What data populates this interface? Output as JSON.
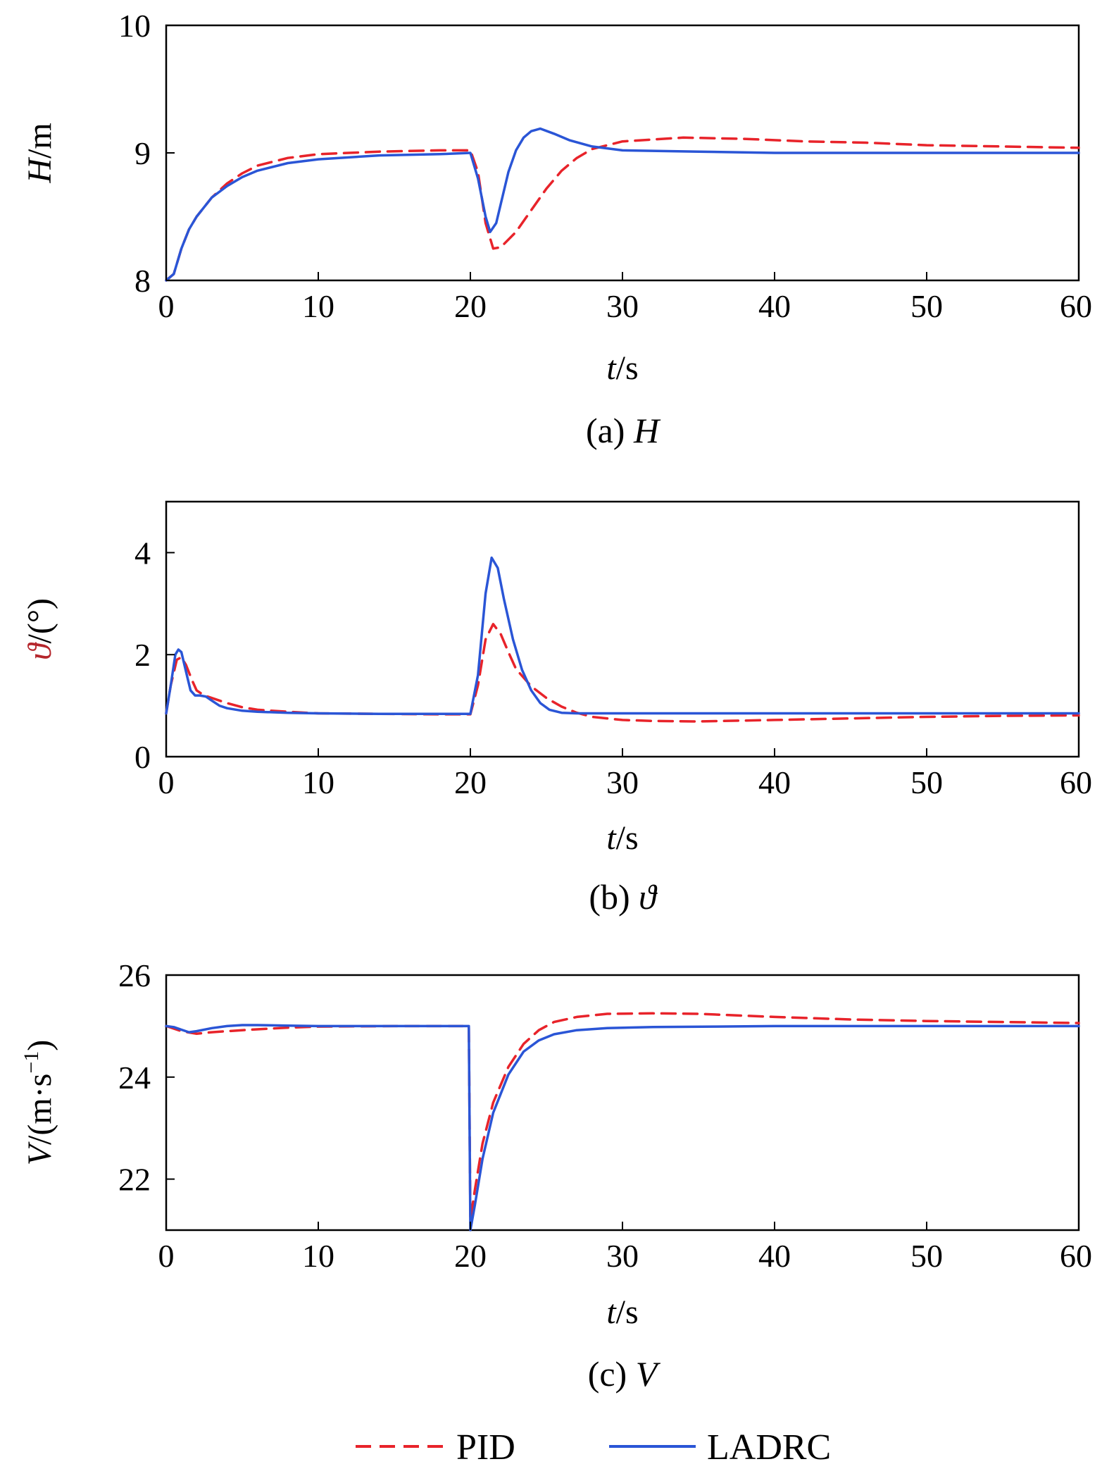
{
  "chart_data": [
    {
      "type": "line",
      "id": "a",
      "caption_prefix": "(a)",
      "caption_symbol": "H",
      "ylabel_var": "H",
      "ylabel_unit": "/m",
      "xlabel_var": "t",
      "xlabel_unit": "/s",
      "xlim": [
        0,
        60
      ],
      "ylim": [
        8,
        10
      ],
      "xticks": [
        0,
        10,
        20,
        30,
        40,
        50,
        60
      ],
      "yticks": [
        8,
        9,
        10
      ],
      "series": [
        {
          "name": "PID",
          "color": "#e8232a",
          "dash": true,
          "x": [
            0,
            0.5,
            1,
            1.5,
            2,
            3,
            4,
            5,
            6,
            8,
            10,
            14,
            18,
            20,
            20.5,
            21,
            21.5,
            22,
            23,
            24,
            25,
            26,
            27,
            28,
            30,
            34,
            38,
            42,
            46,
            50,
            55,
            60
          ],
          "y": [
            8,
            8.05,
            8.25,
            8.4,
            8.5,
            8.65,
            8.76,
            8.84,
            8.9,
            8.96,
            8.99,
            9.01,
            9.02,
            9.02,
            8.85,
            8.45,
            8.25,
            8.26,
            8.38,
            8.55,
            8.72,
            8.86,
            8.96,
            9.03,
            9.09,
            9.12,
            9.11,
            9.09,
            9.08,
            9.06,
            9.05,
            9.04
          ]
        },
        {
          "name": "LADRC",
          "color": "#2a55d6",
          "dash": false,
          "x": [
            0,
            0.5,
            1,
            1.5,
            2,
            3,
            4,
            5,
            6,
            8,
            10,
            14,
            18,
            20,
            20.5,
            21,
            21.3,
            21.7,
            22,
            22.5,
            23,
            23.5,
            24,
            24.6,
            25.5,
            26.5,
            28,
            30,
            35,
            40,
            50,
            60
          ],
          "y": [
            8,
            8.05,
            8.25,
            8.4,
            8.5,
            8.65,
            8.74,
            8.81,
            8.86,
            8.92,
            8.95,
            8.98,
            8.99,
            9.0,
            8.8,
            8.5,
            8.38,
            8.45,
            8.6,
            8.85,
            9.02,
            9.12,
            9.17,
            9.19,
            9.15,
            9.1,
            9.05,
            9.02,
            9.01,
            9.0,
            9.0,
            9.0
          ]
        }
      ]
    },
    {
      "type": "line",
      "id": "b",
      "caption_prefix": "(b)",
      "caption_symbol": "ϑ",
      "ylabel_var": "ϑ",
      "ylabel_unit": "/(°)",
      "xlabel_var": "t",
      "xlabel_unit": "/s",
      "xlim": [
        0,
        60
      ],
      "ylim": [
        0,
        5
      ],
      "xticks": [
        0,
        10,
        20,
        30,
        40,
        50,
        60
      ],
      "yticks": [
        0,
        2,
        4
      ],
      "series": [
        {
          "name": "PID",
          "color": "#e8232a",
          "dash": true,
          "x": [
            0,
            0.3,
            0.7,
            1,
            1.3,
            1.7,
            2,
            2.5,
            3,
            4,
            5,
            6,
            8,
            10,
            14,
            18,
            20,
            20.5,
            21,
            21.5,
            22,
            22.5,
            23,
            24,
            25,
            26,
            27,
            28,
            30,
            32,
            35,
            40,
            45,
            50,
            55,
            60
          ],
          "y": [
            0.85,
            1.4,
            1.9,
            1.95,
            1.8,
            1.5,
            1.3,
            1.2,
            1.15,
            1.05,
            0.97,
            0.92,
            0.88,
            0.85,
            0.84,
            0.83,
            0.83,
            1.4,
            2.3,
            2.6,
            2.4,
            2.05,
            1.72,
            1.38,
            1.15,
            0.98,
            0.86,
            0.78,
            0.72,
            0.7,
            0.69,
            0.72,
            0.75,
            0.78,
            0.8,
            0.81
          ]
        },
        {
          "name": "LADRC",
          "color": "#2a55d6",
          "dash": false,
          "x": [
            0,
            0.3,
            0.6,
            0.8,
            1,
            1.2,
            1.4,
            1.6,
            1.9,
            2.2,
            2.6,
            3,
            3.5,
            4,
            5,
            6,
            8,
            10,
            14,
            18,
            20,
            20.5,
            21,
            21.4,
            21.8,
            22.2,
            22.8,
            23.4,
            24,
            24.6,
            25.2,
            26,
            27,
            30,
            40,
            50,
            60
          ],
          "y": [
            0.85,
            1.4,
            2.0,
            2.1,
            2.05,
            1.8,
            1.55,
            1.3,
            1.2,
            1.2,
            1.18,
            1.1,
            1.0,
            0.95,
            0.9,
            0.88,
            0.86,
            0.85,
            0.84,
            0.84,
            0.84,
            1.6,
            3.2,
            3.9,
            3.7,
            3.1,
            2.3,
            1.7,
            1.3,
            1.05,
            0.92,
            0.86,
            0.85,
            0.85,
            0.85,
            0.85,
            0.85
          ]
        }
      ]
    },
    {
      "type": "line",
      "id": "c",
      "caption_prefix": "(c)",
      "caption_symbol": "V",
      "ylabel_var": "V",
      "ylabel_unit": "/(m·s",
      "ylabel_sup": "−1",
      "ylabel_close": ")",
      "xlabel_var": "t",
      "xlabel_unit": "/s",
      "xlim": [
        0,
        60
      ],
      "ylim": [
        21,
        26
      ],
      "xticks": [
        0,
        10,
        20,
        30,
        40,
        50,
        60
      ],
      "yticks": [
        22,
        24,
        26
      ],
      "series": [
        {
          "name": "PID",
          "color": "#e8232a",
          "dash": true,
          "x": [
            0,
            1,
            2,
            3,
            5,
            8,
            10,
            15,
            19.9,
            20,
            20.3,
            20.8,
            21.5,
            22.5,
            23.5,
            24.5,
            25.5,
            27,
            29,
            32,
            35,
            40,
            45,
            50,
            55,
            60
          ],
          "y": [
            25.0,
            24.9,
            24.85,
            24.88,
            24.92,
            24.97,
            24.99,
            25.0,
            25.0,
            21.2,
            21.8,
            22.7,
            23.5,
            24.2,
            24.65,
            24.92,
            25.08,
            25.18,
            25.24,
            25.25,
            25.24,
            25.18,
            25.13,
            25.1,
            25.08,
            25.06
          ]
        },
        {
          "name": "LADRC",
          "color": "#2a55d6",
          "dash": false,
          "x": [
            0,
            0.5,
            1,
            1.5,
            2,
            3,
            4,
            5,
            6,
            8,
            10,
            15,
            19.9,
            20,
            20.3,
            20.8,
            21.5,
            22.5,
            23.5,
            24.5,
            25.5,
            27,
            29,
            32,
            36,
            40,
            50,
            60
          ],
          "y": [
            25.0,
            24.98,
            24.93,
            24.88,
            24.9,
            24.96,
            25.0,
            25.02,
            25.02,
            25.01,
            25.0,
            25.0,
            25.0,
            21.0,
            21.5,
            22.4,
            23.3,
            24.05,
            24.5,
            24.72,
            24.84,
            24.92,
            24.96,
            24.98,
            24.99,
            25.0,
            25.0,
            25.0
          ]
        }
      ]
    }
  ],
  "legend": {
    "pid_label": "PID",
    "ladrc_label": "LADRC"
  }
}
